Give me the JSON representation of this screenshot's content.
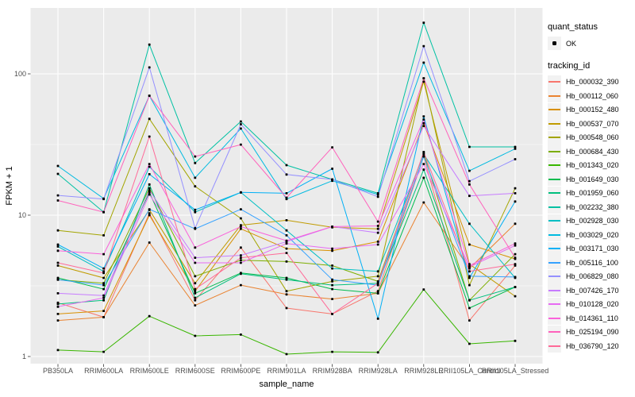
{
  "axes": {
    "x_label": "sample_name",
    "y_label": "FPKM + 1",
    "y_tick_labels": [
      "1",
      "10",
      "100"
    ]
  },
  "legend": {
    "quant_title": "quant_status",
    "quant_ok_label": "OK",
    "tracking_title": "tracking_id"
  },
  "colors": {
    "background": "#FFFFFF",
    "panel_bg": "#EBEBEB",
    "grid": "#FFFFFF",
    "tick_mark": "#333333",
    "tick_label": "#4D4D4D",
    "axis_title": "#000000",
    "point": "#000000",
    "legend_key_bg": "#F2F2F2"
  },
  "chart_data": {
    "type": "line",
    "title": "",
    "xlabel": "sample_name",
    "ylabel": "FPKM + 1",
    "y_scale": "log10",
    "ylim": [
      1,
      292
    ],
    "y_ticks": [
      1,
      10,
      100
    ],
    "y_minor_ticks": [
      3.162,
      31.62
    ],
    "grid": true,
    "legend_position": "right",
    "quant_status_legend": {
      "title": "quant_status",
      "items": [
        "OK"
      ],
      "marker": "black-point"
    },
    "series_legend_title": "tracking_id",
    "categories": [
      "PB350LA",
      "RRIM600LA",
      "RRIM600LE",
      "RRIM600SE",
      "RRIM600PE",
      "RRIM901LA",
      "RRIM928BA",
      "RRIM928LA",
      "RRIM928LE",
      "RRII105LA_Control",
      "RRII105LA_Stressed"
    ],
    "series": [
      {
        "name": "Hb_000032_390",
        "color": "#F8766D",
        "values": [
          2.4,
          1.9,
          10.3,
          2.5,
          5.9,
          2.2,
          2.0,
          2.9,
          26,
          1.8,
          4.4
        ]
      },
      {
        "name": "Hb_000112_060",
        "color": "#EA8331",
        "values": [
          1.8,
          1.9,
          6.4,
          2.3,
          3.2,
          2.75,
          2.55,
          2.8,
          12.3,
          4.2,
          8.7
        ]
      },
      {
        "name": "Hb_000152_480",
        "color": "#D89000",
        "values": [
          2.0,
          2.1,
          10.0,
          2.9,
          8.0,
          5.8,
          5.6,
          6.5,
          44.7,
          6.2,
          4.9
        ]
      },
      {
        "name": "Hb_000537_070",
        "color": "#C09B00",
        "values": [
          4.4,
          3.6,
          10.9,
          3.3,
          8.5,
          9.2,
          8.2,
          8.0,
          88,
          4.5,
          2.67
        ]
      },
      {
        "name": "Hb_000548_060",
        "color": "#A3A500",
        "values": [
          7.8,
          7.2,
          48,
          16,
          9.5,
          2.9,
          3.4,
          3.7,
          93,
          3.2,
          15.5
        ]
      },
      {
        "name": "Hb_000684_430",
        "color": "#7CAE00",
        "values": [
          3.5,
          3.3,
          15.5,
          3.7,
          4.8,
          4.7,
          4.4,
          3.4,
          27.6,
          2.5,
          5.3
        ]
      },
      {
        "name": "Hb_001343_020",
        "color": "#39B600",
        "values": [
          1.11,
          1.08,
          1.93,
          1.4,
          1.43,
          1.04,
          1.08,
          1.07,
          2.98,
          1.23,
          1.29
        ]
      },
      {
        "name": "Hb_001649_030",
        "color": "#00BB4E",
        "values": [
          3.6,
          3.0,
          14.5,
          2.8,
          3.9,
          3.6,
          3.0,
          2.8,
          18.4,
          2.2,
          3.1
        ]
      },
      {
        "name": "Hb_001959_060",
        "color": "#00BF7D",
        "values": [
          2.35,
          2.5,
          16.5,
          2.6,
          3.85,
          3.5,
          3.2,
          3.3,
          21,
          2.5,
          3.1
        ]
      },
      {
        "name": "Hb_002232_380",
        "color": "#00C1A3",
        "values": [
          19.6,
          10.5,
          161,
          23.4,
          46,
          22.6,
          17.9,
          14.3,
          230,
          30.4,
          30.4
        ]
      },
      {
        "name": "Hb_002928_030",
        "color": "#00BFC4",
        "values": [
          6.0,
          4.0,
          22,
          10.5,
          14.5,
          7.8,
          4.2,
          4.0,
          27,
          8.7,
          3.6
        ]
      },
      {
        "name": "Hb_003029_020",
        "color": "#00BAE0",
        "values": [
          22.3,
          13.1,
          70,
          18.4,
          41,
          13.0,
          17.5,
          14.0,
          120,
          20.6,
          29.5
        ]
      },
      {
        "name": "Hb_003171_030",
        "color": "#00B0F6",
        "values": [
          6.2,
          4.2,
          19.5,
          10.9,
          14.5,
          14.3,
          21.3,
          1.85,
          50,
          3.6,
          12.5
        ]
      },
      {
        "name": "Hb_005116_100",
        "color": "#35A2FF",
        "values": [
          3.5,
          3.2,
          11,
          8.0,
          11,
          7.2,
          3.5,
          3.2,
          26,
          3.7,
          3.65
        ]
      },
      {
        "name": "Hb_006829_080",
        "color": "#9590FF",
        "values": [
          13.8,
          13.0,
          111,
          8.1,
          44,
          19.4,
          17.9,
          13.5,
          157,
          17.4,
          24.9
        ]
      },
      {
        "name": "Hb_007426_170",
        "color": "#C77CFF",
        "values": [
          2.8,
          2.7,
          15,
          5.0,
          5.2,
          6.5,
          8.3,
          7.5,
          42.8,
          13.7,
          14.3
        ]
      },
      {
        "name": "Hb_010128_020",
        "color": "#E76BF3",
        "values": [
          2.25,
          2.6,
          14,
          4.6,
          4.6,
          6.3,
          5.8,
          6.2,
          23,
          4.3,
          6.1
        ]
      },
      {
        "name": "Hb_014361_110",
        "color": "#FA62DB",
        "values": [
          5.6,
          5.3,
          23,
          5.9,
          8.3,
          6.6,
          8.3,
          8.4,
          47.5,
          4.4,
          6.3
        ]
      },
      {
        "name": "Hb_025194_090",
        "color": "#FF62BC",
        "values": [
          12.7,
          10.5,
          70,
          26,
          31.6,
          13.3,
          30.2,
          9.0,
          93,
          16.5,
          5.0
        ]
      },
      {
        "name": "Hb_036790_120",
        "color": "#FF6A98",
        "values": [
          4.6,
          3.9,
          36,
          3.0,
          5.0,
          5.4,
          2.0,
          3.3,
          28,
          4.0,
          4.5
        ]
      }
    ]
  }
}
